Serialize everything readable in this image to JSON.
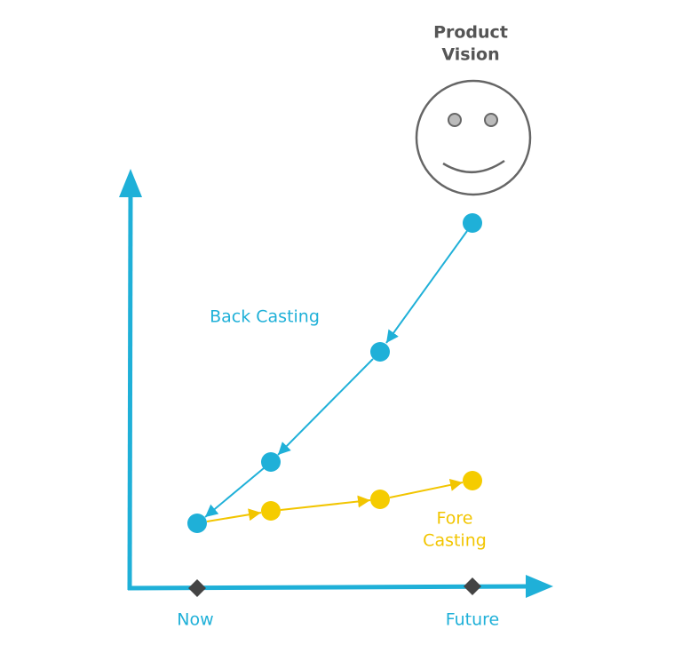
{
  "vision": {
    "lines": [
      "Product",
      "Vision"
    ]
  },
  "back_casting": {
    "label": "Back Casting"
  },
  "fore_casting": {
    "lines": [
      "Fore",
      "Casting"
    ]
  },
  "timeline": {
    "start": "Now",
    "end": "Future"
  }
}
